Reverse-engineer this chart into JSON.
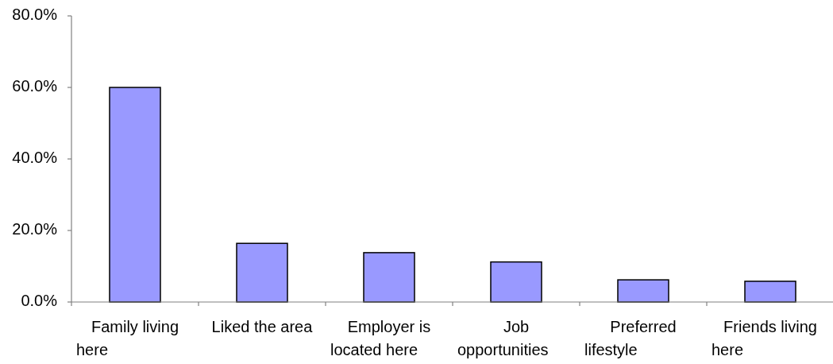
{
  "chart_data": {
    "type": "bar",
    "categories": [
      "Family living here",
      "Liked the area",
      "Employer is located here",
      "Job opportunities",
      "Preferred lifestyle",
      "Friends living here"
    ],
    "values": [
      60.0,
      16.4,
      13.8,
      11.2,
      6.2,
      5.8
    ],
    "color": "#9999ff",
    "ylim": [
      0,
      80
    ],
    "yticks": [
      {
        "value": 0,
        "label": "0.0%"
      },
      {
        "value": 20,
        "label": "20.0%"
      },
      {
        "value": 40,
        "label": "40.0%"
      },
      {
        "value": 60,
        "label": "60.0%"
      },
      {
        "value": 80,
        "label": "80.0%"
      }
    ]
  }
}
